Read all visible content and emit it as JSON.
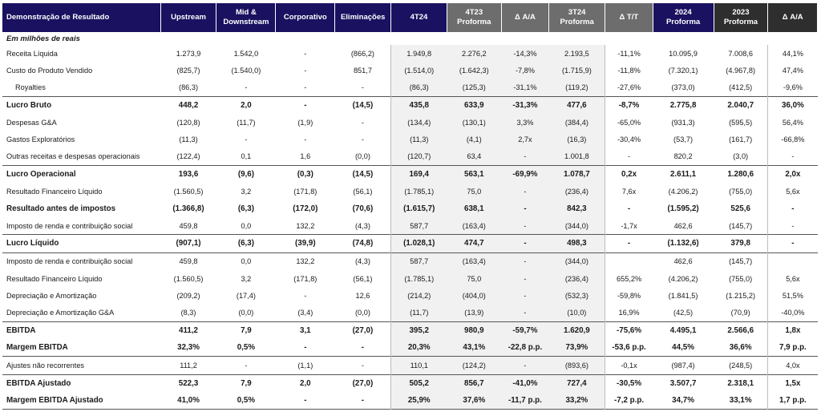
{
  "header": {
    "label": "Demonstração de Resultado",
    "cols": [
      {
        "l1": "Upstream",
        "l2": ""
      },
      {
        "l1": "Mid &",
        "l2": "Downstream"
      },
      {
        "l1": "Corporativo",
        "l2": ""
      },
      {
        "l1": "Eliminações",
        "l2": ""
      },
      {
        "l1": "4T24",
        "l2": ""
      },
      {
        "l1": "4T23",
        "l2": "Proforma"
      },
      {
        "l1": "Δ A/A",
        "l2": ""
      },
      {
        "l1": "3T24",
        "l2": "Proforma"
      },
      {
        "l1": "Δ T/T",
        "l2": ""
      },
      {
        "l1": "2024",
        "l2": "Proforma"
      },
      {
        "l1": "2023",
        "l2": "Proforma"
      },
      {
        "l1": "Δ A/A",
        "l2": ""
      }
    ]
  },
  "unit_label": "Em milhões de reais",
  "rows": [
    {
      "label": "Receita Líquida",
      "bold": false,
      "v": [
        "1.273,9",
        "1.542,0",
        "-",
        "(866,2)",
        "1.949,8",
        "2.276,2",
        "-14,3%",
        "2.193,5",
        "-11,1%",
        "10.095,9",
        "7.008,6",
        "44,1%"
      ]
    },
    {
      "label": "Custo do Produto Vendido",
      "bold": false,
      "v": [
        "(825,7)",
        "(1.540,0)",
        "-",
        "851,7",
        "(1.514,0)",
        "(1.642,3)",
        "-7,8%",
        "(1.715,9)",
        "-11,8%",
        "(7.320,1)",
        "(4.967,8)",
        "47,4%"
      ]
    },
    {
      "label": "Royalties",
      "bold": false,
      "indent": true,
      "v": [
        "(86,3)",
        "-",
        "-",
        "-",
        "(86,3)",
        "(125,3)",
        "-31,1%",
        "(119,2)",
        "-27,6%",
        "(373,0)",
        "(412,5)",
        "-9,6%"
      ]
    },
    {
      "label": "Lucro Bruto",
      "bold": true,
      "v": [
        "448,2",
        "2,0",
        "-",
        "(14,5)",
        "435,8",
        "633,9",
        "-31,3%",
        "477,6",
        "-8,7%",
        "2.775,8",
        "2.040,7",
        "36,0%"
      ]
    },
    {
      "label": "Despesas G&A",
      "bold": false,
      "v": [
        "(120,8)",
        "(11,7)",
        "(1,9)",
        "-",
        "(134,4)",
        "(130,1)",
        "3,3%",
        "(384,4)",
        "-65,0%",
        "(931,3)",
        "(595,5)",
        "56,4%"
      ]
    },
    {
      "label": "Gastos Exploratórios",
      "bold": false,
      "v": [
        "(11,3)",
        "-",
        "-",
        "-",
        "(11,3)",
        "(4,1)",
        "2,7x",
        "(16,3)",
        "-30,4%",
        "(53,7)",
        "(161,7)",
        "-66,8%"
      ]
    },
    {
      "label": "Outras receitas e despesas operacionais",
      "bold": false,
      "v": [
        "(122,4)",
        "0,1",
        "1,6",
        "(0,0)",
        "(120,7)",
        "63,4",
        "-",
        "1.001,8",
        "-",
        "820,2",
        "(3,0)",
        "-"
      ]
    },
    {
      "label": "Lucro Operacional",
      "bold": true,
      "v": [
        "193,6",
        "(9,6)",
        "(0,3)",
        "(14,5)",
        "169,4",
        "563,1",
        "-69,9%",
        "1.078,7",
        "0,2x",
        "2.611,1",
        "1.280,6",
        "2,0x"
      ]
    },
    {
      "label": "Resultado Financeiro Líquido",
      "bold": false,
      "v": [
        "(1.560,5)",
        "3,2",
        "(171,8)",
        "(56,1)",
        "(1.785,1)",
        "75,0",
        "-",
        "(236,4)",
        "7,6x",
        "(4.206,2)",
        "(755,0)",
        "5,6x"
      ]
    },
    {
      "label": "Resultado antes de impostos",
      "bold": true,
      "nosep": true,
      "v": [
        "(1.366,8)",
        "(6,3)",
        "(172,0)",
        "(70,6)",
        "(1.615,7)",
        "638,1",
        "-",
        "842,3",
        "-",
        "(1.595,2)",
        "525,6",
        "-"
      ]
    },
    {
      "label": "Imposto de renda e contribuição social",
      "bold": false,
      "v": [
        "459,8",
        "0,0",
        "132,2",
        "(4,3)",
        "587,7",
        "(163,4)",
        "-",
        "(344,0)",
        "-1,7x",
        "462,6",
        "(145,7)",
        "-"
      ]
    },
    {
      "label": "Lucro Líquido",
      "bold": true,
      "v": [
        "(907,1)",
        "(6,3)",
        "(39,9)",
        "(74,8)",
        "(1.028,1)",
        "474,7",
        "-",
        "498,3",
        "-",
        "(1.132,6)",
        "379,8",
        "-"
      ]
    },
    {
      "label": "Imposto de renda e contribuição social",
      "bold": false,
      "sep": true,
      "v": [
        "459,8",
        "0,0",
        "132,2",
        "(4,3)",
        "587,7",
        "(163,4)",
        "-",
        "(344,0)",
        "",
        "462,6",
        "(145,7)",
        ""
      ]
    },
    {
      "label": "Resultado Financeiro Líquido",
      "bold": false,
      "v": [
        "(1.560,5)",
        "3,2",
        "(171,8)",
        "(56,1)",
        "(1.785,1)",
        "75,0",
        "-",
        "(236,4)",
        "655,2%",
        "(4.206,2)",
        "(755,0)",
        "5,6x"
      ]
    },
    {
      "label": "Depreciação e Amortização",
      "bold": false,
      "v": [
        "(209,2)",
        "(17,4)",
        "-",
        "12,6",
        "(214,2)",
        "(404,0)",
        "-",
        "(532,3)",
        "-59,8%",
        "(1.841,5)",
        "(1.215,2)",
        "51,5%"
      ]
    },
    {
      "label": "Depreciação e Amortização G&A",
      "bold": false,
      "v": [
        "(8,3)",
        "(0,0)",
        "(3,4)",
        "(0,0)",
        "(11,7)",
        "(13,9)",
        "-",
        "(10,0)",
        "16,9%",
        "(42,5)",
        "(70,9)",
        "-40,0%"
      ]
    },
    {
      "label": "EBITDA",
      "bold": true,
      "v": [
        "411,2",
        "7,9",
        "3,1",
        "(27,0)",
        "395,2",
        "980,9",
        "-59,7%",
        "1.620,9",
        "-75,6%",
        "4.495,1",
        "2.566,6",
        "1,8x"
      ]
    },
    {
      "label": "Margem EBITDA",
      "bold": true,
      "nosep": true,
      "v": [
        "32,3%",
        "0,5%",
        "-",
        "-",
        "20,3%",
        "43,1%",
        "-22,8 p.p.",
        "73,9%",
        "-53,6 p.p.",
        "44,5%",
        "36,6%",
        "7,9 p.p."
      ]
    },
    {
      "label": "Ajustes não recorrentes",
      "bold": false,
      "sep": true,
      "v": [
        "111,2",
        "-",
        "(1,1)",
        "-",
        "110,1",
        "(124,2)",
        "-",
        "(893,6)",
        "-0,1x",
        "(987,4)",
        "(248,5)",
        "4,0x"
      ]
    },
    {
      "label": "EBITDA Ajustado",
      "bold": true,
      "v": [
        "522,3",
        "7,9",
        "2,0",
        "(27,0)",
        "505,2",
        "856,7",
        "-41,0%",
        "727,4",
        "-30,5%",
        "3.507,7",
        "2.318,1",
        "1,5x"
      ]
    },
    {
      "label": "Margem EBITDA Ajustado",
      "bold": true,
      "nosep": true,
      "last": true,
      "v": [
        "41,0%",
        "0,5%",
        "-",
        "-",
        "25,9%",
        "37,6%",
        "-11,7 p.p.",
        "33,2%",
        "-7,2 p.p.",
        "34,7%",
        "33,1%",
        "1,7 p.p."
      ]
    }
  ]
}
